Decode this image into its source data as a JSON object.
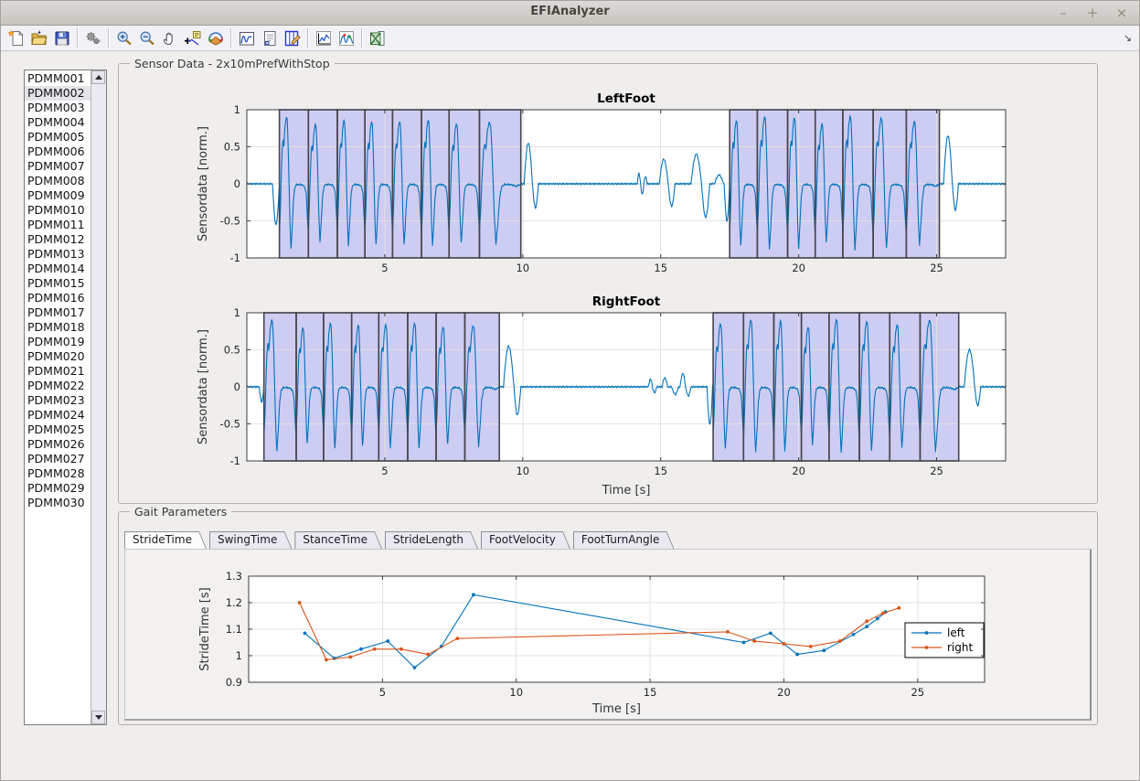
{
  "window": {
    "title": "EFIAnalyzer",
    "controls": [
      {
        "name": "minimize",
        "glyph": "–"
      },
      {
        "name": "maximize",
        "glyph": "+"
      },
      {
        "name": "close",
        "glyph": "×"
      }
    ]
  },
  "toolbar": {
    "overflow_icon": "↘",
    "groups": [
      [
        "new-file",
        "open-file",
        "save"
      ],
      [
        "settings-gears"
      ],
      [
        "zoom-in",
        "zoom-out",
        "pan",
        "data-cursor",
        "rotate-3d"
      ],
      [
        "signal-plot",
        "report",
        "edit-plot"
      ],
      [
        "line-chart",
        "peaks-chart"
      ],
      [
        "export-excel"
      ]
    ]
  },
  "sidebar": {
    "selected": "PDMM002",
    "items": [
      "PDMM001",
      "PDMM002",
      "PDMM003",
      "PDMM004",
      "PDMM005",
      "PDMM006",
      "PDMM007",
      "PDMM008",
      "PDMM009",
      "PDMM010",
      "PDMM011",
      "PDMM012",
      "PDMM013",
      "PDMM014",
      "PDMM015",
      "PDMM016",
      "PDMM017",
      "PDMM018",
      "PDMM019",
      "PDMM020",
      "PDMM021",
      "PDMM022",
      "PDMM023",
      "PDMM024",
      "PDMM025",
      "PDMM026",
      "PDMM027",
      "PDMM028",
      "PDMM029",
      "PDMM030"
    ]
  },
  "sensor_panel": {
    "label": "Sensor Data - 2x10mPrefWithStop"
  },
  "gait_panel": {
    "label": "Gait Parameters",
    "tabs": [
      {
        "label": "StrideTime",
        "active": true
      },
      {
        "label": "SwingTime",
        "active": false
      },
      {
        "label": "StanceTime",
        "active": false
      },
      {
        "label": "StrideLength",
        "active": false
      },
      {
        "label": "FootVelocity",
        "active": false
      },
      {
        "label": "FootTurnAngle",
        "active": false
      }
    ]
  },
  "waveform": {
    "description": "Normalized foot gyroscope signal; repeating stride pattern inside shaded stride segments, flat near zero elsewhere with small turn transients.",
    "noise_amp": 0.008,
    "stride_keypoints": [
      [
        0,
        -0.72
      ],
      [
        0.035,
        -0.35
      ],
      [
        0.07,
        0.18
      ],
      [
        0.1,
        0.52
      ],
      [
        0.13,
        0.6
      ],
      [
        0.155,
        0.5
      ],
      [
        0.19,
        0.78
      ],
      [
        0.235,
        0.92
      ],
      [
        0.27,
        0.88
      ],
      [
        0.3,
        0.55
      ],
      [
        0.33,
        0.05
      ],
      [
        0.365,
        -0.55
      ],
      [
        0.4,
        -0.9
      ],
      [
        0.44,
        -0.62
      ],
      [
        0.49,
        -0.2
      ],
      [
        0.54,
        -0.04
      ],
      [
        0.6,
        -0.01
      ],
      [
        0.72,
        -0.01
      ],
      [
        0.82,
        -0.02
      ],
      [
        0.88,
        -0.05
      ],
      [
        0.93,
        -0.15
      ],
      [
        0.965,
        -0.45
      ],
      [
        1,
        -0.72
      ]
    ],
    "stride_tail_last": [
      [
        0.88,
        -0.04
      ],
      [
        0.94,
        -0.02
      ],
      [
        1,
        -0.01
      ]
    ]
  },
  "chart_data": [
    {
      "id": "leftfoot",
      "type": "line",
      "title": "LeftFoot",
      "ylabel": "Sensordata [norm.]",
      "xlabel": "",
      "xlim": [
        0,
        27.5
      ],
      "ylim": [
        -1,
        1
      ],
      "xticks": [
        5,
        10,
        15,
        20,
        25
      ],
      "yticks": [
        -1,
        -0.5,
        0,
        0.5,
        1
      ],
      "grid": true,
      "line_color": "#0072BD",
      "region_fill": "#CDCCF2",
      "region_border": "#46464F",
      "stride_segments": [
        [
          1.18,
          2.23,
          3.28,
          4.28,
          5.28,
          6.33,
          7.33,
          8.43,
          9.93
        ],
        [
          17.5,
          18.5,
          19.6,
          20.6,
          21.6,
          22.7,
          23.9,
          25.1
        ]
      ],
      "transients": [
        [
          0.93,
          0.25,
          -0.55
        ],
        [
          10.05,
          0.3,
          0.55
        ],
        [
          10.35,
          0.22,
          -0.32
        ],
        [
          14.15,
          0.12,
          0.14
        ],
        [
          14.27,
          0.12,
          -0.14
        ],
        [
          14.39,
          0.12,
          0.1
        ],
        [
          14.95,
          0.32,
          0.33
        ],
        [
          15.27,
          0.25,
          -0.3
        ],
        [
          16.1,
          0.38,
          0.4
        ],
        [
          16.48,
          0.3,
          -0.45
        ],
        [
          16.95,
          0.33,
          0.12
        ],
        [
          17.3,
          0.2,
          -0.5
        ],
        [
          25.25,
          0.32,
          0.65
        ],
        [
          25.57,
          0.22,
          -0.35
        ]
      ]
    },
    {
      "id": "rightfoot",
      "type": "line",
      "title": "RightFoot",
      "ylabel": "Sensordata [norm.]",
      "xlabel": "Time [s]",
      "xlim": [
        0,
        27.5
      ],
      "ylim": [
        -1,
        1
      ],
      "xticks": [
        5,
        10,
        15,
        20,
        25
      ],
      "yticks": [
        -1,
        -0.5,
        0,
        0.5,
        1
      ],
      "grid": true,
      "line_color": "#0072BD",
      "region_fill": "#CDCCF2",
      "region_border": "#46464F",
      "stride_segments": [
        [
          0.62,
          1.79,
          2.78,
          3.8,
          4.78,
          5.83,
          6.86,
          7.9,
          9.15
        ],
        [
          16.9,
          18.0,
          19.1,
          20.1,
          21.1,
          22.2,
          23.3,
          24.4,
          25.8
        ]
      ],
      "transients": [
        [
          0.45,
          0.17,
          -0.2
        ],
        [
          9.3,
          0.38,
          0.55
        ],
        [
          9.68,
          0.25,
          -0.38
        ],
        [
          14.55,
          0.15,
          0.1
        ],
        [
          14.7,
          0.15,
          -0.08
        ],
        [
          15.05,
          0.2,
          0.12
        ],
        [
          15.4,
          0.25,
          -0.1
        ],
        [
          15.7,
          0.2,
          0.18
        ],
        [
          15.9,
          0.2,
          -0.12
        ],
        [
          16.68,
          0.2,
          -0.5
        ],
        [
          26.0,
          0.38,
          0.5
        ],
        [
          26.38,
          0.22,
          -0.25
        ]
      ]
    },
    {
      "id": "stridetime",
      "type": "line",
      "title": "",
      "ylabel": "StrideTime [s]",
      "xlabel": "Time [s]",
      "xlim": [
        0,
        27.5
      ],
      "ylim": [
        0.9,
        1.3
      ],
      "xticks": [
        5,
        10,
        15,
        20,
        25
      ],
      "yticks": [
        0.9,
        1,
        1.1,
        1.2,
        1.3
      ],
      "grid": true,
      "legend": {
        "position": "right",
        "entries": [
          "left",
          "right"
        ]
      },
      "series": [
        {
          "name": "left",
          "color": "#0072BD",
          "x": [
            2.1,
            3.2,
            4.2,
            5.2,
            6.2,
            7.2,
            8.4,
            18.5,
            19.5,
            20.5,
            21.5,
            22.6,
            23.1,
            23.5,
            23.8
          ],
          "y": [
            1.085,
            0.99,
            1.025,
            1.055,
            0.955,
            1.035,
            1.23,
            1.05,
            1.085,
            1.005,
            1.02,
            1.08,
            1.11,
            1.14,
            1.165
          ]
        },
        {
          "name": "right",
          "color": "#D95319",
          "x": [
            1.9,
            2.9,
            3.8,
            4.7,
            5.7,
            6.7,
            7.8,
            17.9,
            18.9,
            20.0,
            21.0,
            22.1,
            23.1,
            23.7,
            24.3
          ],
          "y": [
            1.2,
            0.985,
            0.995,
            1.025,
            1.025,
            1.005,
            1.065,
            1.09,
            1.055,
            1.045,
            1.035,
            1.055,
            1.13,
            1.16,
            1.18
          ]
        }
      ]
    }
  ]
}
